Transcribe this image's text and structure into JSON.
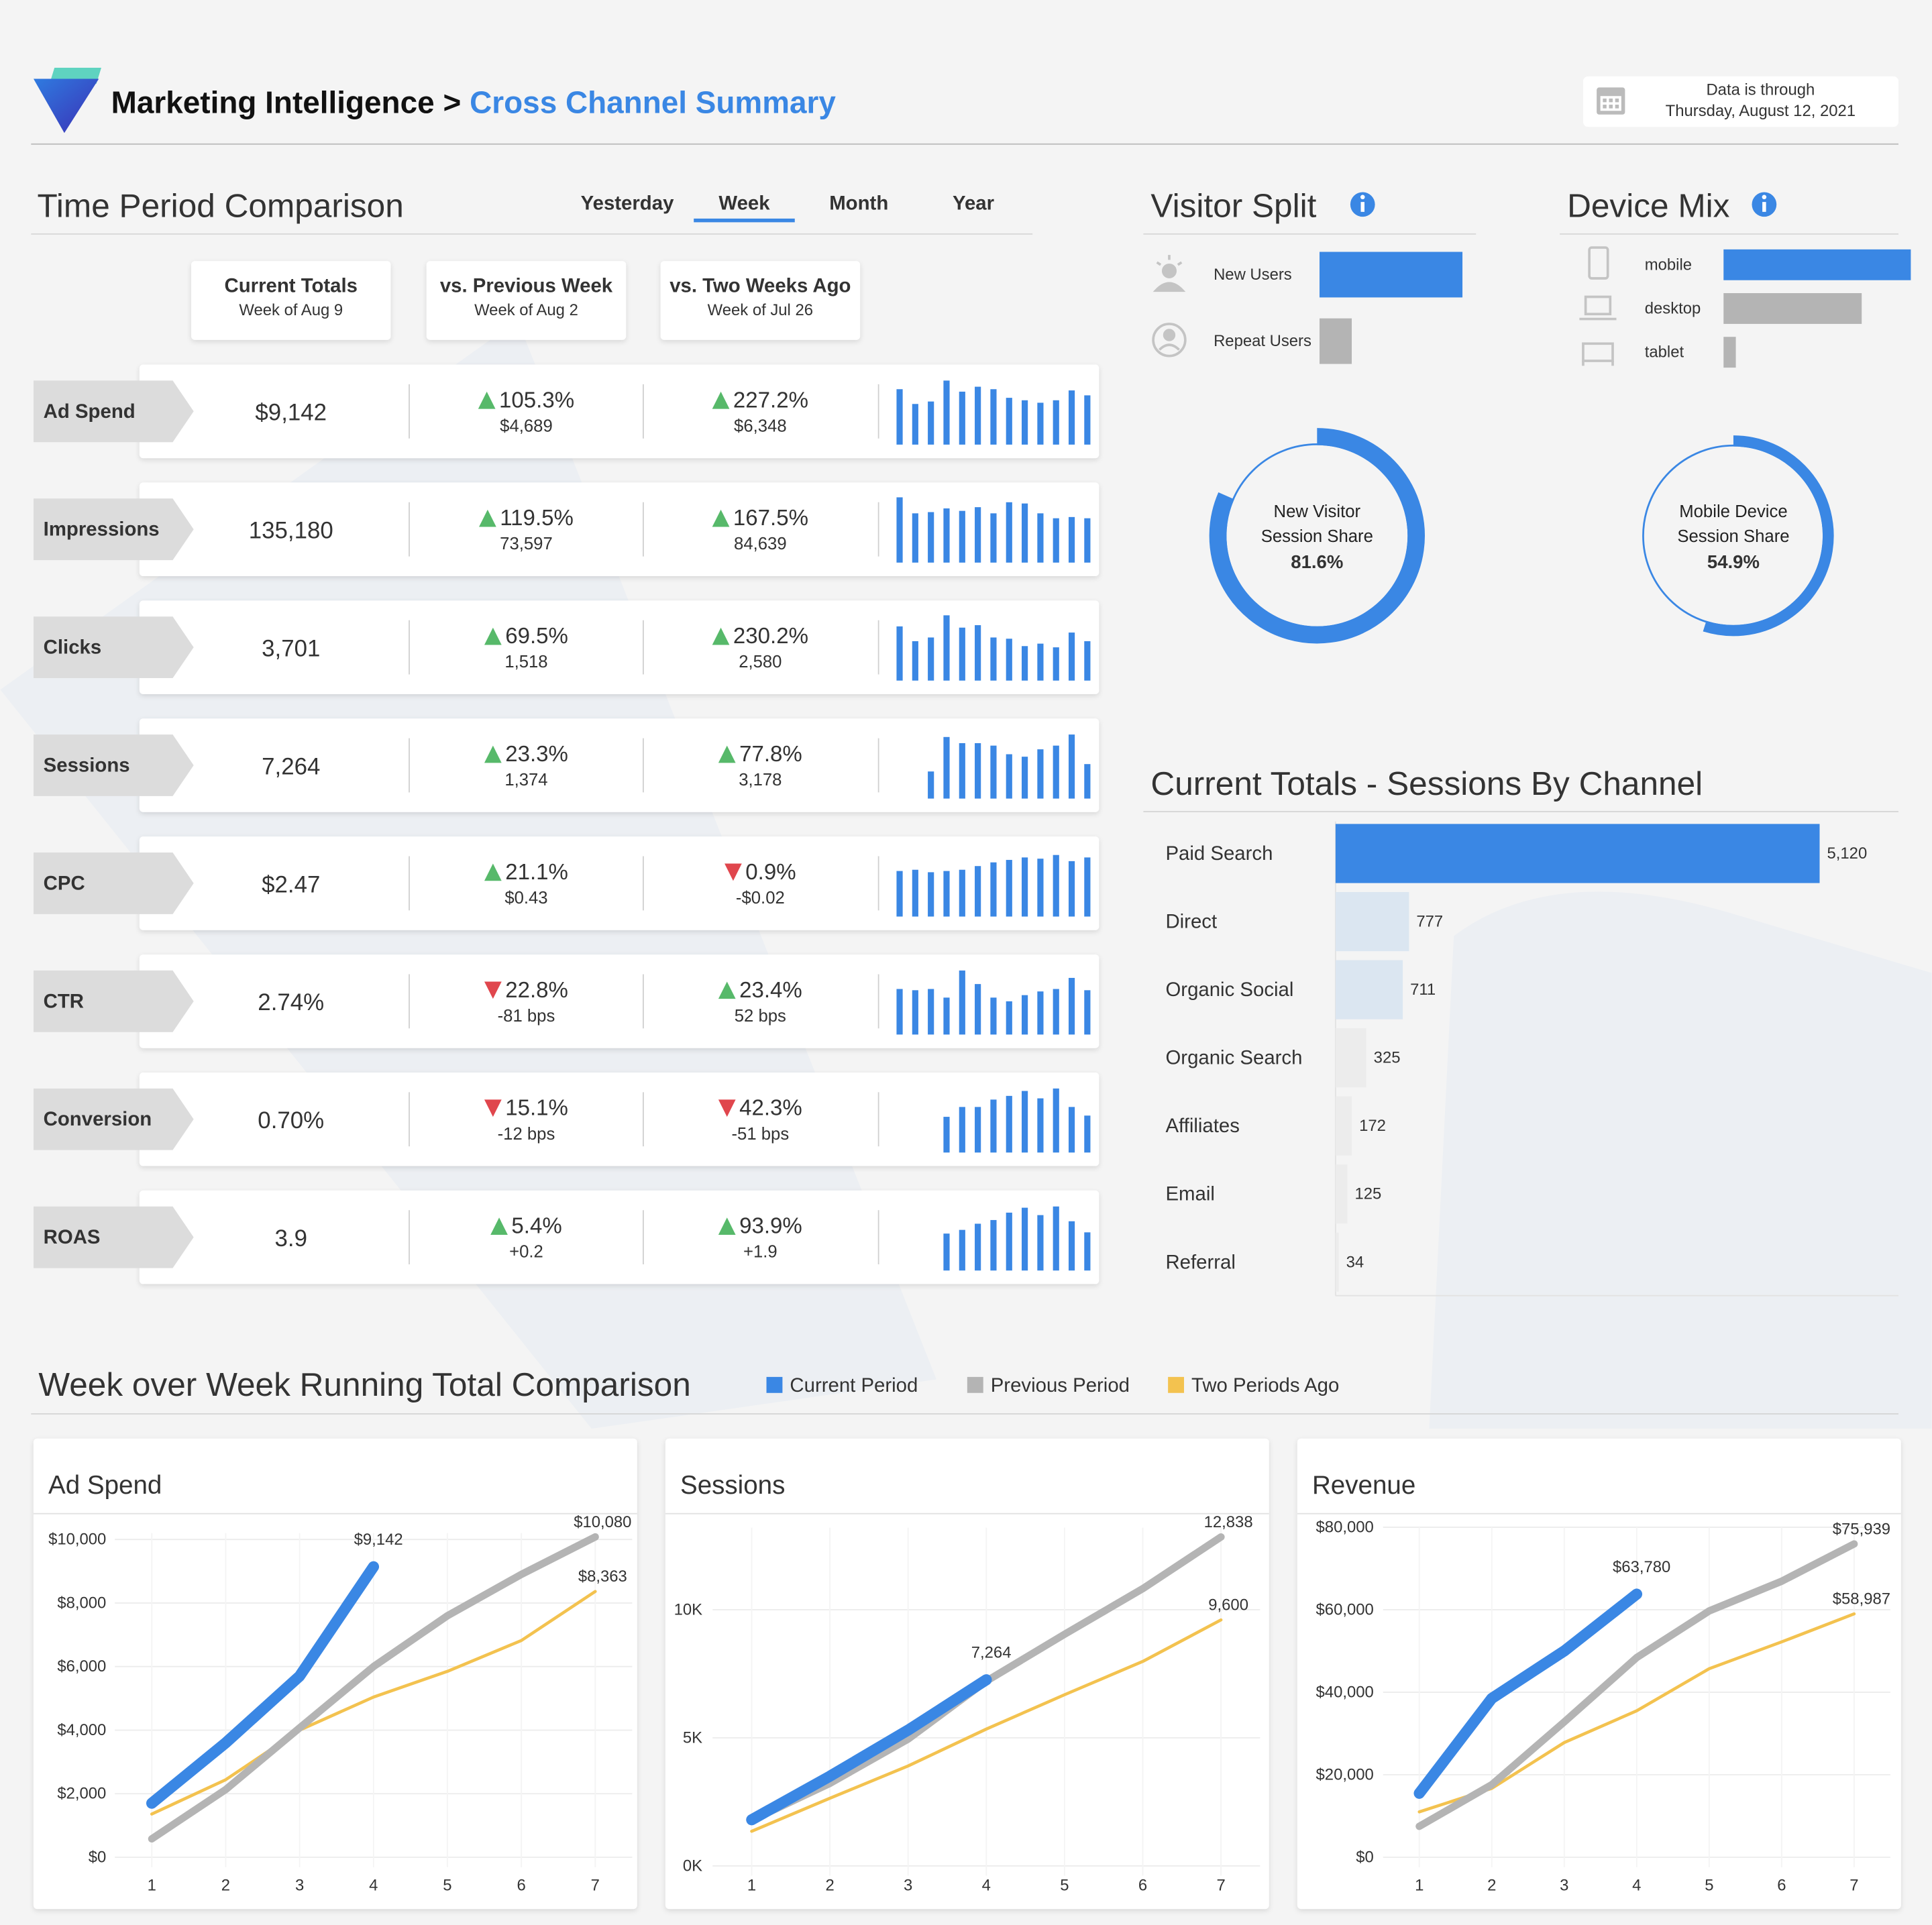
{
  "header": {
    "title": "Marketing Intelligence",
    "separator": ">",
    "subtitle": "Cross Channel Summary",
    "date_label": "Data is through",
    "date": "Thursday, August 12, 2021"
  },
  "time_period": {
    "title": "Time Period Comparison",
    "tabs": [
      "Yesterday",
      "Week",
      "Month",
      "Year"
    ],
    "active_tab": 1,
    "columns": [
      {
        "title": "Current Totals",
        "subtitle": "Week of Aug 9"
      },
      {
        "title": "vs. Previous Week",
        "subtitle": "Week of Aug 2"
      },
      {
        "title": "vs. Two Weeks Ago",
        "subtitle": "Week of Jul 26"
      }
    ],
    "value_color": "#3a87e4",
    "up_color": "#57b96a",
    "down_color": "#e0464d",
    "spark_color": "#3a87e4",
    "sparkline_ylim": [
      0,
      55
    ],
    "rows": [
      {
        "metric": "Ad Spend",
        "current": "$9,142",
        "comparisons": [
          {
            "direction": "up",
            "change": "105.3%",
            "delta": "$4,689"
          },
          {
            "direction": "up",
            "change": "227.2%",
            "delta": "$6,348"
          }
        ],
        "sparkline": [
          45,
          33,
          35,
          52,
          43,
          47,
          45,
          38,
          36,
          34,
          36,
          44,
          40
        ]
      },
      {
        "metric": "Impressions",
        "current": "135,180",
        "comparisons": [
          {
            "direction": "up",
            "change": "119.5%",
            "delta": "73,597"
          },
          {
            "direction": "up",
            "change": "167.5%",
            "delta": "84,639"
          }
        ],
        "sparkline": [
          53,
          40,
          41,
          44,
          42,
          45,
          40,
          49,
          48,
          40,
          36,
          37,
          36
        ]
      },
      {
        "metric": "Clicks",
        "current": "3,701",
        "comparisons": [
          {
            "direction": "up",
            "change": "69.5%",
            "delta": "1,518"
          },
          {
            "direction": "up",
            "change": "230.2%",
            "delta": "2,580"
          }
        ],
        "sparkline": [
          44,
          32,
          35,
          53,
          43,
          45,
          35,
          34,
          28,
          30,
          27,
          39,
          32
        ]
      },
      {
        "metric": "Sessions",
        "current": "7,264",
        "comparisons": [
          {
            "direction": "up",
            "change": "23.3%",
            "delta": "1,374"
          },
          {
            "direction": "up",
            "change": "77.8%",
            "delta": "3,178"
          }
        ],
        "sparkline": [
          22,
          50,
          45,
          45,
          43,
          36,
          34,
          40,
          43,
          52,
          28
        ]
      },
      {
        "metric": "CPC",
        "current": "$2.47",
        "comparisons": [
          {
            "direction": "up",
            "change": "21.1%",
            "delta": "$0.43"
          },
          {
            "direction": "down",
            "change": "0.9%",
            "delta": "-$0.02"
          }
        ],
        "sparkline": [
          37,
          38,
          36,
          37,
          38,
          41,
          44,
          46,
          48,
          47,
          50,
          45,
          48
        ]
      },
      {
        "metric": "CTR",
        "current": "2.74%",
        "comparisons": [
          {
            "direction": "down",
            "change": "22.8%",
            "delta": "-81 bps"
          },
          {
            "direction": "up",
            "change": "23.4%",
            "delta": "52 bps"
          }
        ],
        "sparkline": [
          37,
          36,
          37,
          30,
          52,
          41,
          30,
          27,
          32,
          35,
          37,
          46,
          36
        ]
      },
      {
        "metric": "Conversion",
        "current": "0.70%",
        "comparisons": [
          {
            "direction": "down",
            "change": "15.1%",
            "delta": "-12 bps"
          },
          {
            "direction": "down",
            "change": "42.3%",
            "delta": "-51 bps"
          }
        ],
        "sparkline": [
          29,
          37,
          37,
          43,
          46,
          50,
          44,
          52,
          37,
          30
        ]
      },
      {
        "metric": "ROAS",
        "current": "3.9",
        "comparisons": [
          {
            "direction": "up",
            "change": "5.4%",
            "delta": "+0.2"
          },
          {
            "direction": "up",
            "change": "93.9%",
            "delta": "+1.9"
          }
        ],
        "sparkline": [
          30,
          33,
          38,
          41,
          47,
          51,
          45,
          52,
          40,
          31
        ]
      }
    ]
  },
  "week_over_week": {
    "title": "Week over Week Running Total Comparison",
    "legend": [
      {
        "name": "Current Period",
        "color": "#3a87e4"
      },
      {
        "name": "Previous Period",
        "color": "#b4b4b4"
      },
      {
        "name": "Two Periods Ago",
        "color": "#f3c24f"
      }
    ]
  },
  "chart_data": [
    {
      "type": "hbar",
      "title": "Visitor Split",
      "categories": [
        "New Users",
        "Repeat Users"
      ],
      "values": [
        81.6,
        18.4
      ],
      "colors": [
        "#3a87e4",
        "#b4b4b4"
      ],
      "xlim": [
        0,
        82
      ]
    },
    {
      "type": "hbar",
      "title": "Device Mix",
      "categories": [
        "mobile",
        "desktop",
        "tablet"
      ],
      "values": [
        54.9,
        40.5,
        3.6
      ],
      "colors": [
        "#3a87e4",
        "#b4b4b4",
        "#b4b4b4"
      ],
      "xlim": [
        0,
        55
      ]
    },
    {
      "type": "donut",
      "title": "New Visitor Session Share",
      "values": [
        81.6
      ],
      "value_labels": [
        "81.6%"
      ],
      "color": "#3a87e4",
      "ylim": [
        0,
        100
      ]
    },
    {
      "type": "donut",
      "title": "Mobile Device Session Share",
      "values": [
        54.9
      ],
      "value_labels": [
        "54.9%"
      ],
      "color": "#3a87e4",
      "ylim": [
        0,
        100
      ]
    },
    {
      "type": "hbar",
      "title": "Current Totals - Sessions By Channel",
      "categories": [
        "Paid Search",
        "Direct",
        "Organic Social",
        "Organic Search",
        "Affiliates",
        "Email",
        "Referral"
      ],
      "values": [
        5120,
        777,
        711,
        325,
        172,
        125,
        34
      ],
      "value_labels": [
        "5,120",
        "777",
        "711",
        "325",
        "172",
        "125",
        "34"
      ],
      "colors": [
        "#3a87e4",
        "#dbe6f1",
        "#dbe6f1",
        "#ececec",
        "#ececec",
        "#ececec",
        "#ececec"
      ],
      "xlim": [
        0,
        5120
      ]
    },
    {
      "type": "line",
      "title": "Ad Spend",
      "x": [
        1,
        2,
        3,
        4,
        5,
        6,
        7
      ],
      "xlim": [
        0.5,
        7.5
      ],
      "xticks": [
        1,
        2,
        3,
        4,
        5,
        6,
        7
      ],
      "ylim": [
        0,
        10200
      ],
      "yticks": [
        {
          "value": 0,
          "label": "$0"
        },
        {
          "value": 2000,
          "label": "$2,000"
        },
        {
          "value": 4000,
          "label": "$4,000"
        },
        {
          "value": 6000,
          "label": "$6,000"
        },
        {
          "value": 8000,
          "label": "$8,000"
        },
        {
          "value": 10000,
          "label": "$10,000"
        }
      ],
      "grid": true,
      "series": [
        {
          "values": [
            1700,
            3600,
            5700,
            9142,
            null,
            null,
            null
          ],
          "value_labels": [
            null,
            null,
            null,
            "$9,142",
            null,
            null,
            null
          ]
        },
        {
          "values": [
            580,
            2130,
            4070,
            6000,
            7600,
            8900,
            10080
          ],
          "value_labels": [
            null,
            null,
            null,
            null,
            null,
            null,
            "$10,080"
          ]
        },
        {
          "values": [
            1360,
            2440,
            4000,
            5040,
            5850,
            6820,
            8363
          ],
          "value_labels": [
            null,
            null,
            null,
            null,
            null,
            null,
            "$8,363"
          ]
        }
      ]
    },
    {
      "type": "line",
      "title": "Sessions",
      "x": [
        1,
        2,
        3,
        4,
        5,
        6,
        7
      ],
      "xlim": [
        0.5,
        7.5
      ],
      "xticks": [
        1,
        2,
        3,
        4,
        5,
        6,
        7
      ],
      "ylim": [
        0,
        13200
      ],
      "yticks": [
        {
          "value": 0,
          "label": "0K"
        },
        {
          "value": 5000,
          "label": "5K"
        },
        {
          "value": 10000,
          "label": "10K"
        }
      ],
      "grid": true,
      "series": [
        {
          "values": [
            1800,
            3500,
            5300,
            7264,
            null,
            null,
            null
          ],
          "value_labels": [
            null,
            null,
            null,
            "7,264",
            null,
            null,
            null
          ]
        },
        {
          "values": [
            1780,
            3220,
            4950,
            7210,
            9040,
            10820,
            12838
          ],
          "value_labels": [
            null,
            null,
            null,
            null,
            null,
            null,
            "12,838"
          ]
        },
        {
          "values": [
            1350,
            2640,
            3900,
            5340,
            6680,
            7980,
            9600
          ],
          "value_labels": [
            null,
            null,
            null,
            null,
            null,
            null,
            "9,600"
          ]
        }
      ]
    },
    {
      "type": "line",
      "title": "Revenue",
      "x": [
        1,
        2,
        3,
        4,
        5,
        6,
        7
      ],
      "xlim": [
        0.5,
        7.5
      ],
      "xticks": [
        1,
        2,
        3,
        4,
        5,
        6,
        7
      ],
      "ylim": [
        0,
        80000
      ],
      "yticks": [
        {
          "value": 0,
          "label": "$0"
        },
        {
          "value": 20000,
          "label": "$20,000"
        },
        {
          "value": 40000,
          "label": "$40,000"
        },
        {
          "value": 60000,
          "label": "$60,000"
        },
        {
          "value": 80000,
          "label": "$80,000"
        }
      ],
      "grid": true,
      "series": [
        {
          "values": [
            15500,
            38500,
            50000,
            63780,
            null,
            null,
            null
          ],
          "value_labels": [
            null,
            null,
            null,
            "$63,780",
            null,
            null,
            null
          ]
        },
        {
          "values": [
            7500,
            17600,
            32800,
            48400,
            59700,
            66900,
            75939
          ],
          "value_labels": [
            null,
            null,
            null,
            null,
            null,
            null,
            "$75,939"
          ]
        },
        {
          "values": [
            11000,
            16700,
            27800,
            35500,
            45700,
            52200,
            58987
          ],
          "value_labels": [
            null,
            null,
            null,
            null,
            null,
            null,
            "$58,987"
          ]
        }
      ]
    }
  ]
}
